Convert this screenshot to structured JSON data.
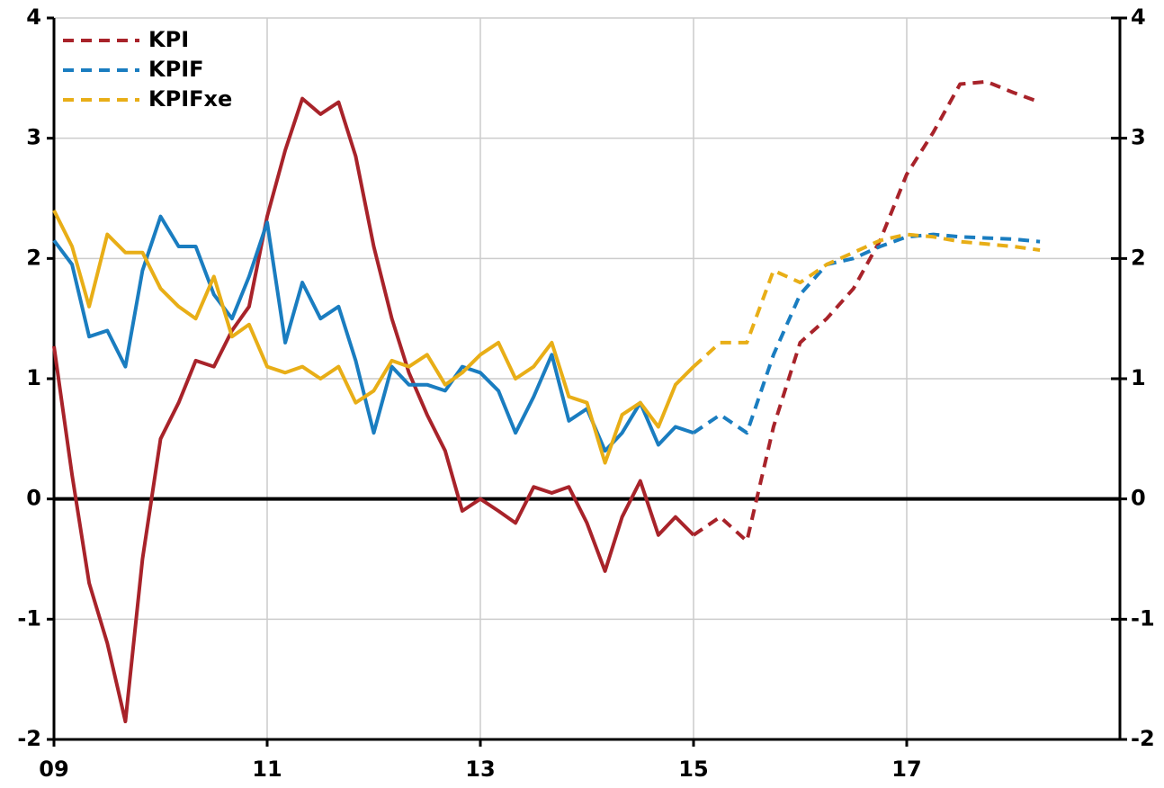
{
  "chart_data": {
    "type": "line",
    "x": [
      9,
      9.17,
      9.33,
      9.5,
      9.67,
      9.83,
      10,
      10.17,
      10.33,
      10.5,
      10.67,
      10.83,
      11,
      11.17,
      11.33,
      11.5,
      11.67,
      11.83,
      12,
      12.17,
      12.33,
      12.5,
      12.67,
      12.83,
      13,
      13.17,
      13.33,
      13.5,
      13.67,
      13.83,
      14,
      14.17,
      14.33,
      14.5,
      14.67,
      14.83,
      15,
      15.25,
      15.5,
      15.75,
      16,
      16.25,
      16.5,
      16.75,
      17,
      17.25,
      17.5,
      17.75,
      18,
      18.25
    ],
    "forecast_start": 15,
    "series": [
      {
        "name": "KPI",
        "color": "#a8232a",
        "values": [
          1.27,
          0.2,
          -0.7,
          -1.2,
          -1.85,
          -0.5,
          0.5,
          0.8,
          1.15,
          1.1,
          1.4,
          1.6,
          2.35,
          2.9,
          3.33,
          3.2,
          3.3,
          2.85,
          2.1,
          1.5,
          1.05,
          0.7,
          0.4,
          -0.1,
          0.0,
          -0.1,
          -0.2,
          0.1,
          0.05,
          0.1,
          -0.2,
          -0.6,
          -0.15,
          0.15,
          -0.3,
          -0.15,
          -0.3,
          -0.15,
          -0.35,
          0.6,
          1.3,
          1.5,
          1.75,
          2.15,
          2.7,
          3.05,
          3.45,
          3.47,
          3.38,
          3.3
        ]
      },
      {
        "name": "KPIF",
        "color": "#1a7dc0",
        "values": [
          2.15,
          1.95,
          1.35,
          1.4,
          1.1,
          1.9,
          2.35,
          2.1,
          2.1,
          1.7,
          1.5,
          1.85,
          2.3,
          1.3,
          1.8,
          1.5,
          1.6,
          1.15,
          0.55,
          1.1,
          0.95,
          0.95,
          0.9,
          1.1,
          1.05,
          0.9,
          0.55,
          0.85,
          1.2,
          0.65,
          0.75,
          0.4,
          0.55,
          0.8,
          0.45,
          0.6,
          0.55,
          0.7,
          0.55,
          1.2,
          1.7,
          1.95,
          2.0,
          2.1,
          2.18,
          2.2,
          2.18,
          2.17,
          2.16,
          2.14
        ]
      },
      {
        "name": "KPIFxe",
        "color": "#e8ae17",
        "values": [
          2.4,
          2.1,
          1.6,
          2.2,
          2.05,
          2.05,
          1.75,
          1.6,
          1.5,
          1.85,
          1.35,
          1.45,
          1.1,
          1.05,
          1.1,
          1.0,
          1.1,
          0.8,
          0.9,
          1.15,
          1.1,
          1.2,
          0.95,
          1.05,
          1.2,
          1.3,
          1.0,
          1.1,
          1.3,
          0.85,
          0.8,
          0.3,
          0.7,
          0.8,
          0.6,
          0.95,
          1.1,
          1.3,
          1.3,
          1.9,
          1.8,
          1.95,
          2.05,
          2.15,
          2.2,
          2.18,
          2.14,
          2.12,
          2.1,
          2.07
        ]
      }
    ],
    "xlim": [
      9,
      19
    ],
    "xticks": [
      {
        "value": 9,
        "label": "09"
      },
      11,
      13,
      15,
      17
    ],
    "ylim": [
      -2,
      4
    ],
    "yticks": [
      -2,
      -1,
      0,
      1,
      2,
      3,
      4
    ],
    "y2lim": [
      -2,
      4
    ],
    "y2ticks": [
      -2,
      -1,
      0,
      1,
      2,
      3,
      4
    ],
    "grid": true,
    "legend": "top-left"
  }
}
